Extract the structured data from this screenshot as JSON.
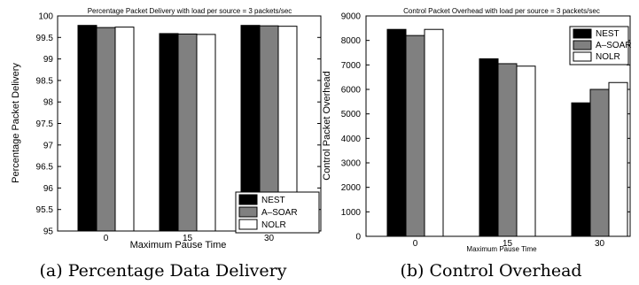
{
  "chart_data": [
    {
      "type": "bar",
      "title": "Percentage Packet Delivery with load per source = 3 packets/sec",
      "xlabel": "Maximum Pause Time",
      "ylabel": "Percentage Packet Delivery",
      "categories": [
        "0",
        "15",
        "30"
      ],
      "series": [
        {
          "name": "NEST",
          "values": [
            99.78,
            99.59,
            99.78
          ],
          "color": "#000000"
        },
        {
          "name": "A–SOAR",
          "values": [
            99.73,
            99.58,
            99.77
          ],
          "color": "#808080"
        },
        {
          "name": "NOLR",
          "values": [
            99.74,
            99.57,
            99.76
          ],
          "color": "#ffffff"
        }
      ],
      "ylim": [
        95,
        100
      ],
      "yticks": [
        "95",
        "95.5",
        "96",
        "96.5",
        "97",
        "97.5",
        "98",
        "98.5",
        "99",
        "99.5",
        "100"
      ],
      "legend_position": "bottom-right",
      "grid": false,
      "caption": "(a) Percentage Data Delivery"
    },
    {
      "type": "bar",
      "title": "Control Packet Overhead with load per source = 3 packets/sec",
      "xlabel": "Maximum Pause Time",
      "ylabel": "Control Packet Overhead",
      "categories": [
        "0",
        "15",
        "30"
      ],
      "series": [
        {
          "name": "NEST",
          "values": [
            8450,
            7250,
            5450
          ],
          "color": "#000000"
        },
        {
          "name": "A–SOAR",
          "values": [
            8200,
            7050,
            6000
          ],
          "color": "#808080"
        },
        {
          "name": "NOLR",
          "values": [
            8450,
            6950,
            6280
          ],
          "color": "#ffffff"
        }
      ],
      "ylim": [
        0,
        9000
      ],
      "yticks": [
        "0",
        "1000",
        "2000",
        "3000",
        "4000",
        "5000",
        "6000",
        "7000",
        "8000",
        "9000"
      ],
      "legend_position": "top-right",
      "grid": false,
      "caption": "(b) Control Overhead"
    }
  ]
}
